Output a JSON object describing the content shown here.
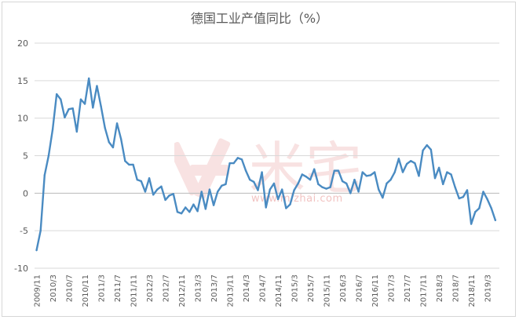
{
  "chart_data": {
    "type": "line",
    "title": "德国工业产值同比（%）",
    "xlabel": "",
    "ylabel": "",
    "ylim": [
      -10,
      20
    ],
    "yticks": [
      -10,
      -5,
      0,
      5,
      10,
      15,
      20
    ],
    "xtick_labels": [
      "2009/11",
      "2010/3",
      "2010/7",
      "2010/11",
      "2011/3",
      "2011/7",
      "2011/11",
      "2012/3",
      "2012/7",
      "2012/11",
      "2013/3",
      "2013/7",
      "2013/11",
      "2014/3",
      "2014/7",
      "2014/11",
      "2015/3",
      "2015/7",
      "2015/11",
      "2016/3",
      "2016/7",
      "2016/11",
      "2017/3",
      "2017/7",
      "2017/11",
      "2018/3",
      "2018/7",
      "2018/11",
      "2019/3"
    ],
    "grid": true,
    "legend": "none",
    "line_color": "#4a8bc2",
    "series": [
      {
        "x_start": "2009/11",
        "values": [
          -7.6,
          -5.0,
          2.4,
          5.0,
          8.5,
          13.2,
          12.5,
          10.1,
          11.2,
          11.3,
          8.2,
          12.5,
          11.9,
          15.3,
          11.4,
          14.3,
          11.6,
          8.7,
          6.8,
          6.1,
          9.3,
          7.2,
          4.3,
          3.8,
          3.8,
          1.8,
          1.6,
          0.2,
          2.0,
          -0.2,
          0.5,
          0.9,
          -0.9,
          -0.3,
          -0.1,
          -2.5,
          -2.7,
          -1.9,
          -2.5,
          -1.5,
          -2.4,
          0.2,
          -2.1,
          0.5,
          -1.6,
          0.2,
          1.0,
          1.2,
          4.0,
          4.0,
          4.7,
          4.5,
          3.0,
          1.8,
          1.5,
          0.4,
          2.8,
          -1.9,
          0.5,
          1.3,
          -0.8,
          0.5,
          -2.0,
          -1.5,
          0.4,
          1.3,
          2.5,
          2.2,
          1.8,
          3.2,
          1.2,
          0.8,
          0.6,
          0.8,
          3.0,
          3.0,
          1.6,
          1.3,
          0.0,
          1.8,
          0.2,
          2.8,
          2.3,
          2.4,
          2.8,
          0.5,
          -0.6,
          1.3,
          1.8,
          2.8,
          4.6,
          2.8,
          3.9,
          4.3,
          4.0,
          2.3,
          5.7,
          6.4,
          5.8,
          2.0,
          3.4,
          1.2,
          2.8,
          2.5,
          0.8,
          -0.7,
          -0.5,
          0.4,
          -4.1,
          -2.5,
          -2.0,
          0.2,
          -0.8,
          -2.0,
          -3.6
        ]
      }
    ]
  },
  "watermark": {
    "text": "米宅",
    "url": "www.mizhai.com",
    "color": "#d9534f"
  }
}
